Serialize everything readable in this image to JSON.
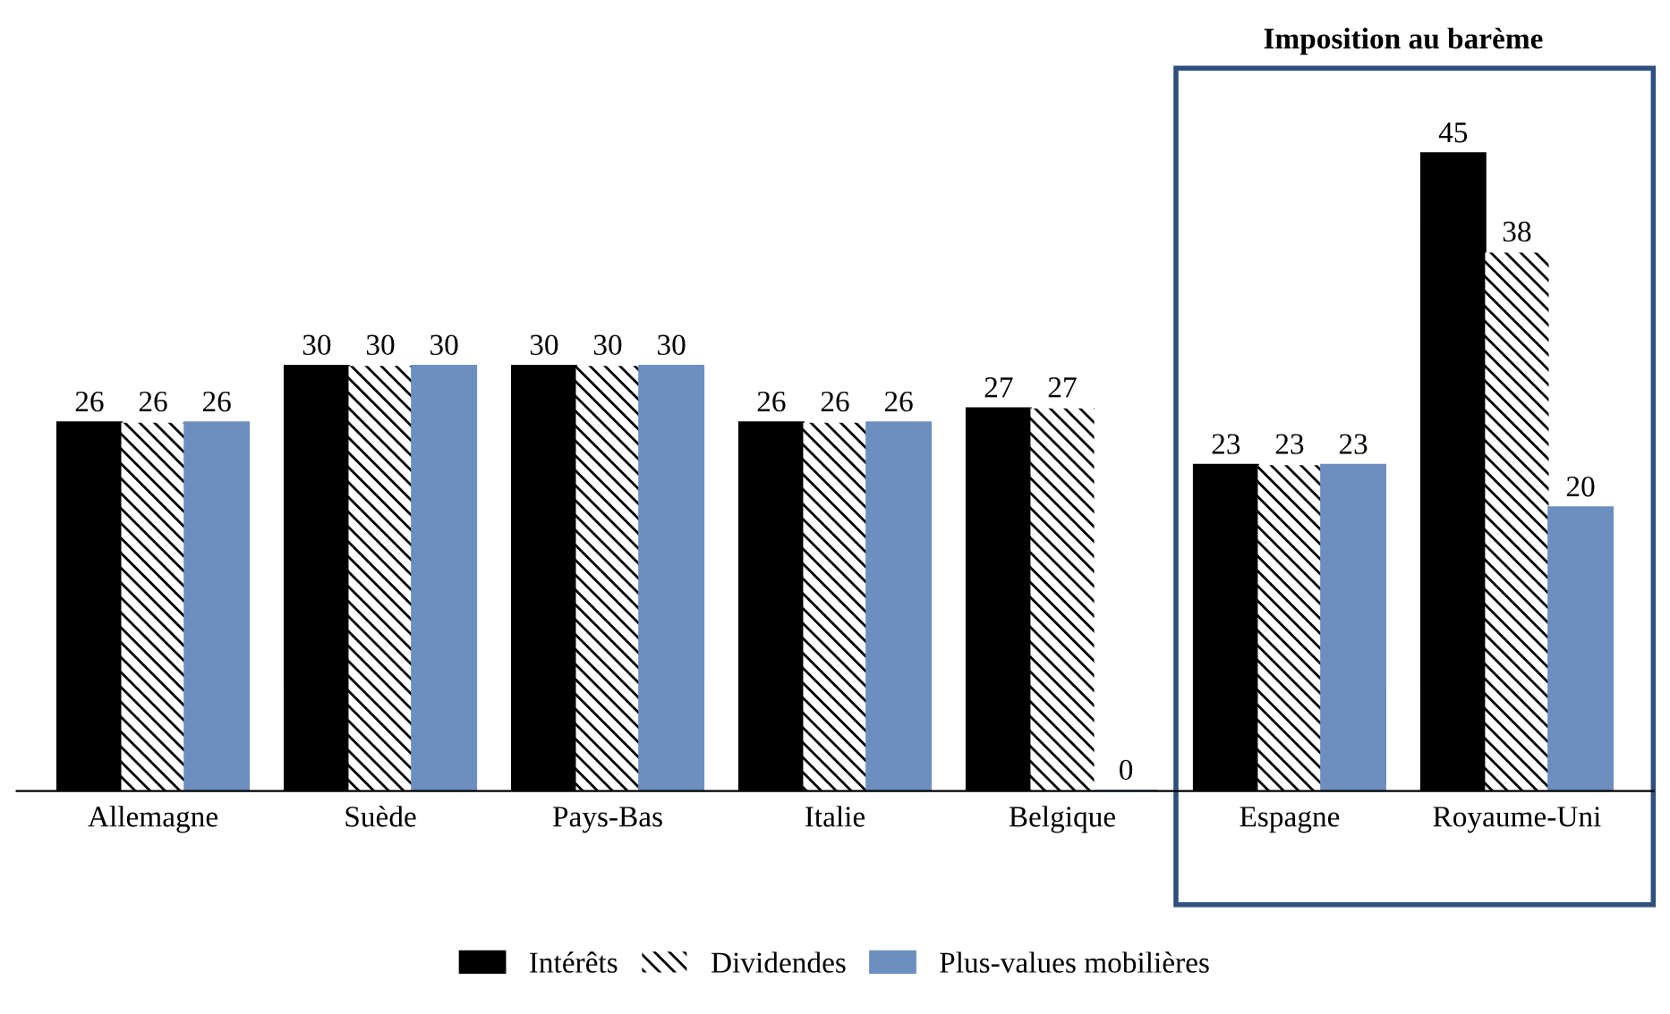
{
  "chart_data": {
    "type": "bar",
    "categories": [
      "Allemagne",
      "Suède",
      "Pays-Bas",
      "Italie",
      "Belgique",
      "Espagne",
      "Royaume-Uni"
    ],
    "series": [
      {
        "name": "Intérêts",
        "color": "#000000",
        "values": [
          26,
          30,
          30,
          26,
          27,
          23,
          45
        ]
      },
      {
        "name": "Dividendes",
        "color": "#000000",
        "values": [
          26,
          30,
          30,
          26,
          27,
          23,
          38
        ]
      },
      {
        "name": "Plus-values mobilières",
        "color": "#6d8fbf",
        "values": [
          26,
          30,
          30,
          26,
          0,
          23,
          20
        ]
      }
    ],
    "tick_labels": "x",
    "data_labels": true,
    "legend": "bottom",
    "annotations": [
      "Imposition au barème"
    ]
  }
}
